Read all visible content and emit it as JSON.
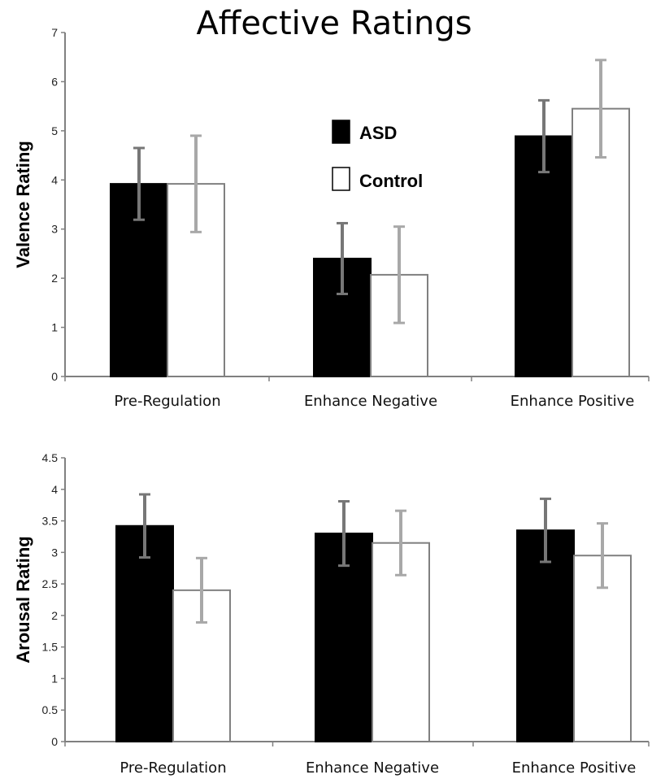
{
  "title": "Affective Ratings",
  "legend": {
    "items": [
      "ASD",
      "Control"
    ]
  },
  "colors": {
    "asd": "#000000",
    "control": "#ffffff",
    "axis": "#808080",
    "error_asd": "#777777",
    "error_control": "#a8a8a8"
  },
  "chart_data": [
    {
      "type": "bar",
      "ylabel": "Valence Rating",
      "categories": [
        "Pre-Regulation",
        "Enhance Negative",
        "Enhance Positive"
      ],
      "ylim": [
        0,
        7
      ],
      "yticks": [
        "0",
        "1",
        "2",
        "3",
        "4",
        "5",
        "6",
        "7"
      ],
      "series": [
        {
          "name": "ASD",
          "values": [
            3.92,
            2.4,
            4.89
          ],
          "errors": [
            0.73,
            0.72,
            0.73
          ]
        },
        {
          "name": "Control",
          "values": [
            3.92,
            2.07,
            5.45
          ],
          "errors": [
            0.98,
            0.98,
            0.99
          ]
        }
      ],
      "legend": "top-center"
    },
    {
      "type": "bar",
      "ylabel": "Arousal Rating",
      "categories": [
        "Pre-Regulation",
        "Enhance Negative",
        "Enhance Positive"
      ],
      "ylim": [
        0,
        4.5
      ],
      "yticks": [
        "0",
        "0.5",
        "1",
        "1.5",
        "2",
        "2.5",
        "3",
        "3.5",
        "4",
        "4.5"
      ],
      "series": [
        {
          "name": "ASD",
          "values": [
            3.42,
            3.3,
            3.35
          ],
          "errors": [
            0.5,
            0.51,
            0.5
          ]
        },
        {
          "name": "Control",
          "values": [
            2.4,
            3.15,
            2.95
          ],
          "errors": [
            0.51,
            0.51,
            0.51
          ]
        }
      ]
    }
  ]
}
